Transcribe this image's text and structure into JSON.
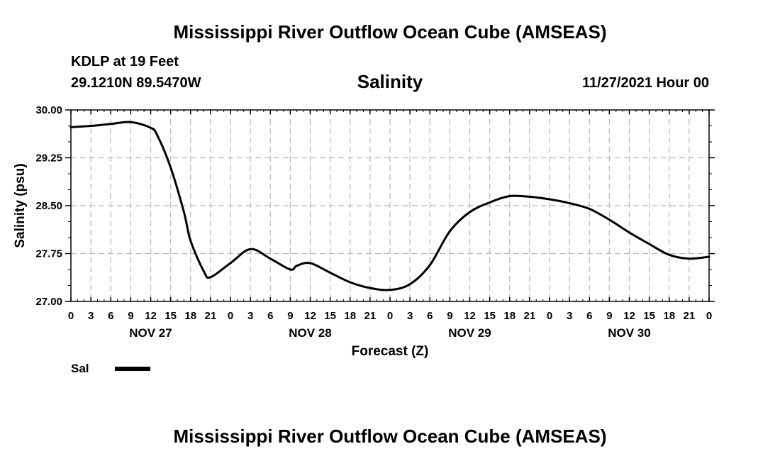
{
  "header": {
    "title": "Mississippi River Outflow Ocean Cube (AMSEAS)",
    "station": "KDLP at 19 Feet",
    "coords": "29.1210N  89.5470W",
    "subtitle": "Salinity",
    "datetime": "11/27/2021 Hour 00"
  },
  "footer": {
    "title": "Mississippi River Outflow Ocean Cube (AMSEAS)"
  },
  "legend": {
    "label": "Sal",
    "color": "#000000"
  },
  "chart_data": {
    "type": "line",
    "title": "Salinity",
    "xlabel": "Forecast (Z)",
    "ylabel": "Salinity (psu)",
    "ylim": [
      27.0,
      30.0
    ],
    "xlim": [
      0,
      96
    ],
    "yticks": [
      "27.00",
      "27.75",
      "28.50",
      "29.25",
      "30.00"
    ],
    "ytick_values": [
      27.0,
      27.75,
      28.5,
      29.25,
      30.0
    ],
    "xtick_labels": [
      "0",
      "3",
      "6",
      "9",
      "12",
      "15",
      "18",
      "21",
      "0",
      "3",
      "6",
      "9",
      "12",
      "15",
      "18",
      "21",
      "0",
      "3",
      "6",
      "9",
      "12",
      "15",
      "18",
      "21",
      "0",
      "3",
      "6",
      "9",
      "12",
      "15",
      "18",
      "21",
      "0"
    ],
    "day_labels": [
      {
        "label": "NOV 27",
        "hour": 12
      },
      {
        "label": "NOV 28",
        "hour": 36
      },
      {
        "label": "NOV 29",
        "hour": 60
      },
      {
        "label": "NOV 30",
        "hour": 84
      }
    ],
    "grid": true,
    "legend_position": "bottom-left",
    "series": [
      {
        "name": "Sal",
        "x": [
          0,
          3,
          6,
          9,
          12,
          13,
          15,
          17,
          18,
          20,
          21,
          24,
          27,
          30,
          33,
          34,
          36,
          39,
          42,
          45,
          48,
          51,
          54,
          57,
          60,
          63,
          66,
          69,
          72,
          75,
          78,
          81,
          84,
          87,
          90,
          93,
          96
        ],
        "values": [
          29.73,
          29.75,
          29.78,
          29.81,
          29.72,
          29.6,
          29.1,
          28.4,
          27.95,
          27.47,
          27.38,
          27.6,
          27.82,
          27.67,
          27.5,
          27.56,
          27.6,
          27.45,
          27.3,
          27.21,
          27.18,
          27.27,
          27.57,
          28.1,
          28.4,
          28.55,
          28.65,
          28.64,
          28.6,
          28.54,
          28.45,
          28.28,
          28.08,
          27.9,
          27.73,
          27.67,
          27.7
        ]
      }
    ]
  }
}
